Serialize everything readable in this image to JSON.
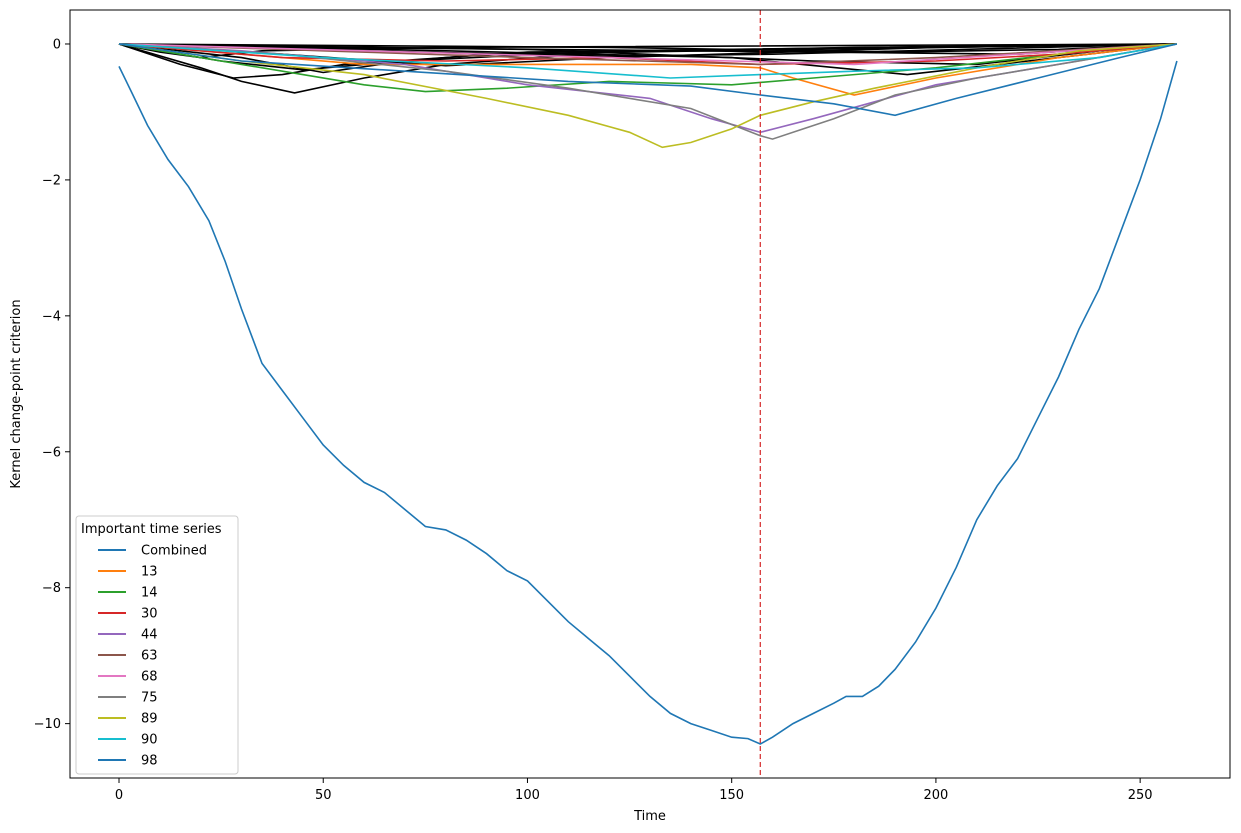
{
  "chart_data": {
    "type": "line",
    "title": "",
    "xlabel": "Time",
    "ylabel": "Kernel change-point criterion",
    "xlim": [
      -12,
      272
    ],
    "ylim": [
      -10.8,
      0.5
    ],
    "xticks": [
      0,
      50,
      100,
      150,
      200,
      250
    ],
    "yticks": [
      0,
      -2,
      -4,
      -6,
      -8,
      -10
    ],
    "xtick_labels": [
      "0",
      "50",
      "100",
      "150",
      "200",
      "250"
    ],
    "ytick_labels": [
      "0",
      "−2",
      "−4",
      "−6",
      "−8",
      "−10"
    ],
    "grid": false,
    "changepoint": {
      "x": 157,
      "color": "#d62728",
      "style": "dashed"
    },
    "background_series_color": "#000000",
    "background_series": [
      {
        "points": [
          [
            0,
            0
          ],
          [
            20,
            -0.35
          ],
          [
            30,
            -0.55
          ],
          [
            43,
            -0.72
          ],
          [
            60,
            -0.5
          ],
          [
            80,
            -0.3
          ],
          [
            120,
            -0.12
          ],
          [
            180,
            -0.05
          ],
          [
            259,
            0
          ]
        ]
      },
      {
        "points": [
          [
            0,
            0
          ],
          [
            15,
            -0.3
          ],
          [
            28,
            -0.5
          ],
          [
            40,
            -0.45
          ],
          [
            55,
            -0.3
          ],
          [
            100,
            -0.12
          ],
          [
            259,
            0
          ]
        ]
      },
      {
        "points": [
          [
            0,
            0
          ],
          [
            30,
            -0.2
          ],
          [
            50,
            -0.42
          ],
          [
            70,
            -0.25
          ],
          [
            120,
            -0.1
          ],
          [
            259,
            0
          ]
        ]
      },
      {
        "points": [
          [
            0,
            0
          ],
          [
            25,
            -0.25
          ],
          [
            45,
            -0.38
          ],
          [
            60,
            -0.3
          ],
          [
            90,
            -0.15
          ],
          [
            259,
            0
          ]
        ]
      },
      {
        "points": [
          [
            0,
            0
          ],
          [
            40,
            -0.15
          ],
          [
            80,
            -0.32
          ],
          [
            120,
            -0.2
          ],
          [
            200,
            -0.05
          ],
          [
            259,
            0
          ]
        ]
      },
      {
        "points": [
          [
            0,
            0
          ],
          [
            60,
            -0.1
          ],
          [
            120,
            -0.18
          ],
          [
            160,
            -0.15
          ],
          [
            259,
            0
          ]
        ]
      },
      {
        "points": [
          [
            0,
            0
          ],
          [
            80,
            -0.1
          ],
          [
            150,
            -0.2
          ],
          [
            193,
            -0.45
          ],
          [
            230,
            -0.2
          ],
          [
            259,
            0
          ]
        ]
      },
      {
        "points": [
          [
            0,
            0
          ],
          [
            100,
            -0.08
          ],
          [
            170,
            -0.25
          ],
          [
            210,
            -0.3
          ],
          [
            240,
            -0.1
          ],
          [
            259,
            0
          ]
        ]
      },
      {
        "points": [
          [
            0,
            0
          ],
          [
            50,
            -0.05
          ],
          [
            140,
            -0.1
          ],
          [
            220,
            -0.15
          ],
          [
            259,
            0
          ]
        ]
      },
      {
        "points": [
          [
            0,
            0
          ],
          [
            10,
            -0.12
          ],
          [
            20,
            -0.2
          ],
          [
            35,
            -0.1
          ],
          [
            80,
            -0.05
          ],
          [
            259,
            0
          ]
        ]
      },
      {
        "points": [
          [
            0,
            0
          ],
          [
            120,
            -0.05
          ],
          [
            190,
            -0.12
          ],
          [
            230,
            -0.08
          ],
          [
            259,
            0
          ]
        ]
      }
    ],
    "legend": {
      "title": "Important time series",
      "position": "lower-left"
    },
    "series": [
      {
        "name": "Combined",
        "color": "#1f77b4",
        "points": [
          [
            0,
            -0.33
          ],
          [
            3,
            -0.7
          ],
          [
            7,
            -1.2
          ],
          [
            12,
            -1.7
          ],
          [
            17,
            -2.1
          ],
          [
            22,
            -2.6
          ],
          [
            26,
            -3.2
          ],
          [
            30,
            -3.9
          ],
          [
            35,
            -4.7
          ],
          [
            40,
            -5.1
          ],
          [
            45,
            -5.5
          ],
          [
            50,
            -5.9
          ],
          [
            55,
            -6.2
          ],
          [
            60,
            -6.45
          ],
          [
            65,
            -6.6
          ],
          [
            70,
            -6.85
          ],
          [
            75,
            -7.1
          ],
          [
            80,
            -7.15
          ],
          [
            85,
            -7.3
          ],
          [
            90,
            -7.5
          ],
          [
            95,
            -7.75
          ],
          [
            100,
            -7.9
          ],
          [
            105,
            -8.2
          ],
          [
            110,
            -8.5
          ],
          [
            115,
            -8.75
          ],
          [
            120,
            -9.0
          ],
          [
            125,
            -9.3
          ],
          [
            130,
            -9.6
          ],
          [
            135,
            -9.85
          ],
          [
            140,
            -10.0
          ],
          [
            145,
            -10.1
          ],
          [
            150,
            -10.2
          ],
          [
            154,
            -10.22
          ],
          [
            157,
            -10.3
          ],
          [
            160,
            -10.2
          ],
          [
            165,
            -10.0
          ],
          [
            170,
            -9.85
          ],
          [
            175,
            -9.7
          ],
          [
            178,
            -9.6
          ],
          [
            182,
            -9.6
          ],
          [
            186,
            -9.45
          ],
          [
            190,
            -9.2
          ],
          [
            195,
            -8.8
          ],
          [
            200,
            -8.3
          ],
          [
            205,
            -7.7
          ],
          [
            210,
            -7.0
          ],
          [
            215,
            -6.5
          ],
          [
            220,
            -6.1
          ],
          [
            225,
            -5.5
          ],
          [
            230,
            -4.9
          ],
          [
            235,
            -4.2
          ],
          [
            240,
            -3.6
          ],
          [
            245,
            -2.8
          ],
          [
            250,
            -2.0
          ],
          [
            255,
            -1.1
          ],
          [
            259,
            -0.25
          ]
        ]
      },
      {
        "name": "13",
        "color": "#ff7f0e",
        "points": [
          [
            0,
            0
          ],
          [
            30,
            -0.15
          ],
          [
            60,
            -0.3
          ],
          [
            100,
            -0.3
          ],
          [
            140,
            -0.3
          ],
          [
            157,
            -0.35
          ],
          [
            165,
            -0.5
          ],
          [
            180,
            -0.75
          ],
          [
            200,
            -0.5
          ],
          [
            230,
            -0.2
          ],
          [
            259,
            0
          ]
        ]
      },
      {
        "name": "14",
        "color": "#2ca02c",
        "points": [
          [
            0,
            0
          ],
          [
            20,
            -0.2
          ],
          [
            45,
            -0.45
          ],
          [
            60,
            -0.6
          ],
          [
            75,
            -0.7
          ],
          [
            95,
            -0.65
          ],
          [
            120,
            -0.55
          ],
          [
            150,
            -0.6
          ],
          [
            170,
            -0.5
          ],
          [
            200,
            -0.35
          ],
          [
            230,
            -0.15
          ],
          [
            259,
            0
          ]
        ]
      },
      {
        "name": "30",
        "color": "#d62728",
        "points": [
          [
            0,
            0
          ],
          [
            40,
            -0.2
          ],
          [
            80,
            -0.25
          ],
          [
            120,
            -0.2
          ],
          [
            157,
            -0.3
          ],
          [
            200,
            -0.25
          ],
          [
            230,
            -0.15
          ],
          [
            259,
            0
          ]
        ]
      },
      {
        "name": "44",
        "color": "#9467bd",
        "points": [
          [
            0,
            0
          ],
          [
            30,
            -0.1
          ],
          [
            70,
            -0.3
          ],
          [
            100,
            -0.6
          ],
          [
            130,
            -0.8
          ],
          [
            145,
            -1.1
          ],
          [
            157,
            -1.3
          ],
          [
            170,
            -1.1
          ],
          [
            185,
            -0.85
          ],
          [
            200,
            -0.6
          ],
          [
            225,
            -0.35
          ],
          [
            259,
            0
          ]
        ]
      },
      {
        "name": "63",
        "color": "#8c564b",
        "points": [
          [
            0,
            0
          ],
          [
            50,
            -0.1
          ],
          [
            100,
            -0.2
          ],
          [
            157,
            -0.3
          ],
          [
            200,
            -0.2
          ],
          [
            259,
            0
          ]
        ]
      },
      {
        "name": "68",
        "color": "#e377c2",
        "points": [
          [
            0,
            0
          ],
          [
            30,
            -0.05
          ],
          [
            90,
            -0.15
          ],
          [
            150,
            -0.25
          ],
          [
            180,
            -0.3
          ],
          [
            220,
            -0.15
          ],
          [
            259,
            0
          ]
        ]
      },
      {
        "name": "75",
        "color": "#7f7f7f",
        "points": [
          [
            0,
            0
          ],
          [
            40,
            -0.15
          ],
          [
            80,
            -0.4
          ],
          [
            110,
            -0.65
          ],
          [
            140,
            -0.95
          ],
          [
            157,
            -1.35
          ],
          [
            160,
            -1.4
          ],
          [
            175,
            -1.1
          ],
          [
            190,
            -0.75
          ],
          [
            210,
            -0.5
          ],
          [
            235,
            -0.25
          ],
          [
            259,
            0
          ]
        ]
      },
      {
        "name": "89",
        "color": "#bcbd22",
        "points": [
          [
            0,
            0
          ],
          [
            30,
            -0.25
          ],
          [
            60,
            -0.45
          ],
          [
            90,
            -0.8
          ],
          [
            110,
            -1.05
          ],
          [
            125,
            -1.3
          ],
          [
            133,
            -1.52
          ],
          [
            140,
            -1.45
          ],
          [
            150,
            -1.25
          ],
          [
            157,
            -1.05
          ],
          [
            170,
            -0.85
          ],
          [
            185,
            -0.65
          ],
          [
            210,
            -0.35
          ],
          [
            235,
            -0.1
          ],
          [
            259,
            0
          ]
        ]
      },
      {
        "name": "90",
        "color": "#17becf",
        "points": [
          [
            0,
            0
          ],
          [
            50,
            -0.2
          ],
          [
            100,
            -0.35
          ],
          [
            135,
            -0.5
          ],
          [
            157,
            -0.45
          ],
          [
            180,
            -0.4
          ],
          [
            210,
            -0.35
          ],
          [
            240,
            -0.2
          ],
          [
            259,
            0
          ]
        ]
      },
      {
        "name": "98",
        "color": "#1f77b4",
        "points": [
          [
            0,
            0
          ],
          [
            30,
            -0.25
          ],
          [
            70,
            -0.4
          ],
          [
            110,
            -0.55
          ],
          [
            140,
            -0.62
          ],
          [
            157,
            -0.75
          ],
          [
            175,
            -0.88
          ],
          [
            190,
            -1.05
          ],
          [
            205,
            -0.8
          ],
          [
            225,
            -0.5
          ],
          [
            245,
            -0.2
          ],
          [
            259,
            0
          ]
        ]
      }
    ]
  }
}
